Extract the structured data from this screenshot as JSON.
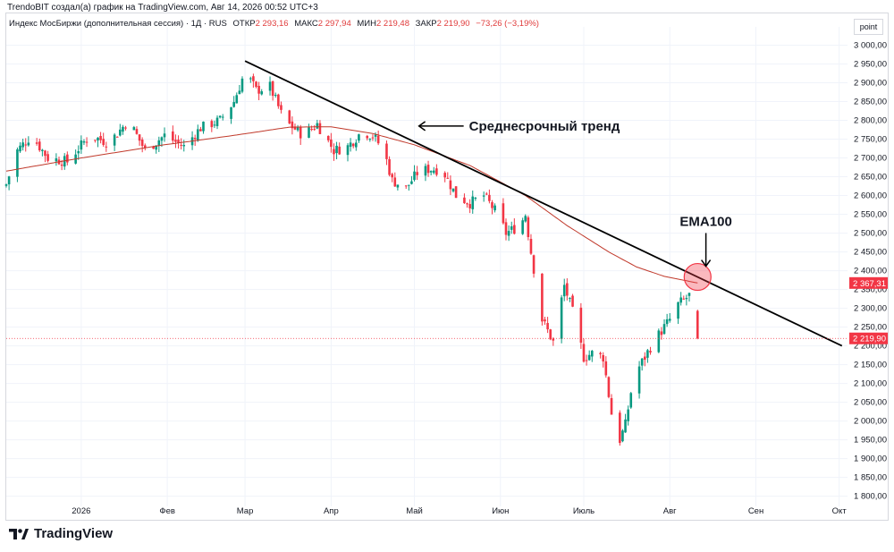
{
  "header": {
    "attribution": "TrendoBIT создал(а) график на TradingView.com, Авг 14, 2026 00:52 UTC+3",
    "instrument": "Индекс МосБиржи (дополнительная сессия) · 1Д · RUS",
    "open_label": "ОТКР",
    "open_value": "2 293,16",
    "high_label": "МАКС",
    "high_value": "2 297,94",
    "low_label": "МИН",
    "low_value": "2 219,48",
    "close_label": "ЗАКР",
    "close_value": "2 219,90",
    "change_value": "−73,26 (−3,19%)"
  },
  "scale_button": "point",
  "footer": {
    "brand": "TradingView"
  },
  "colors": {
    "up": "#089981",
    "down": "#f23645",
    "ema": "#c0392b",
    "trend": "#000000",
    "circle": "#f23645"
  },
  "chart_data": {
    "type": "candlestick",
    "title": "",
    "y_ticks": [
      "3 000,00",
      "2 950,00",
      "2 900,00",
      "2 850,00",
      "2 800,00",
      "2 750,00",
      "2 700,00",
      "2 650,00",
      "2 600,00",
      "2 550,00",
      "2 500,00",
      "2 450,00",
      "2 400,00",
      "2 350,00",
      "2 300,00",
      "2 250,00",
      "2 200,00",
      "2 150,00",
      "2 100,00",
      "2 050,00",
      "2 000,00",
      "1 950,00",
      "1 900,00",
      "1 850,00",
      "1 800,00"
    ],
    "y_tick_values": [
      3000,
      2950,
      2900,
      2850,
      2800,
      2750,
      2700,
      2650,
      2600,
      2550,
      2500,
      2450,
      2400,
      2350,
      2300,
      2250,
      2200,
      2150,
      2100,
      2050,
      2000,
      1950,
      1900,
      1850,
      1800
    ],
    "ylim": [
      1773,
      3025
    ],
    "x_ticks": [
      {
        "label": "2026",
        "day": 0
      },
      {
        "label": "Фев",
        "day": 31
      },
      {
        "label": "Мар",
        "day": 59
      },
      {
        "label": "Апр",
        "day": 90
      },
      {
        "label": "Май",
        "day": 120
      },
      {
        "label": "Июн",
        "day": 151
      },
      {
        "label": "Июль",
        "day": 181
      },
      {
        "label": "Авг",
        "day": 212
      },
      {
        "label": "Сен",
        "day": 243
      },
      {
        "label": "Окт",
        "day": 273
      }
    ],
    "xlim_days": [
      -27,
      276
    ],
    "anchors": [
      [
        -27,
        2630
      ],
      [
        -23,
        2720
      ],
      [
        -18,
        2760
      ],
      [
        -12,
        2700
      ],
      [
        -5,
        2690
      ],
      [
        3,
        2760
      ],
      [
        10,
        2740
      ],
      [
        17,
        2800
      ],
      [
        23,
        2720
      ],
      [
        30,
        2760
      ],
      [
        37,
        2730
      ],
      [
        43,
        2780
      ],
      [
        50,
        2800
      ],
      [
        55,
        2850
      ],
      [
        59,
        2930
      ],
      [
        63,
        2880
      ],
      [
        68,
        2890
      ],
      [
        73,
        2800
      ],
      [
        80,
        2760
      ],
      [
        85,
        2790
      ],
      [
        91,
        2720
      ],
      [
        96,
        2730
      ],
      [
        101,
        2770
      ],
      [
        105,
        2760
      ],
      [
        109,
        2720
      ],
      [
        112,
        2640
      ],
      [
        117,
        2620
      ],
      [
        121,
        2660
      ],
      [
        125,
        2670
      ],
      [
        130,
        2670
      ],
      [
        135,
        2600
      ],
      [
        140,
        2580
      ],
      [
        145,
        2600
      ],
      [
        150,
        2550
      ],
      [
        153,
        2500
      ],
      [
        158,
        2520
      ],
      [
        160,
        2550
      ],
      [
        162,
        2450
      ],
      [
        166,
        2270
      ],
      [
        170,
        2210
      ],
      [
        174,
        2360
      ],
      [
        177,
        2290
      ],
      [
        181,
        2170
      ],
      [
        184,
        2180
      ],
      [
        188,
        2170
      ],
      [
        191,
        2020
      ],
      [
        193,
        1930
      ],
      [
        196,
        1990
      ],
      [
        199,
        2120
      ],
      [
        203,
        2170
      ],
      [
        206,
        2210
      ],
      [
        209,
        2240
      ],
      [
        212,
        2270
      ],
      [
        215,
        2310
      ],
      [
        220,
        2340
      ],
      [
        222,
        2219.9
      ]
    ],
    "ema100": [
      [
        -27,
        2665
      ],
      [
        0,
        2700
      ],
      [
        30,
        2735
      ],
      [
        55,
        2760
      ],
      [
        75,
        2782
      ],
      [
        90,
        2783
      ],
      [
        105,
        2765
      ],
      [
        120,
        2735
      ],
      [
        140,
        2680
      ],
      [
        160,
        2600
      ],
      [
        175,
        2520
      ],
      [
        190,
        2450
      ],
      [
        200,
        2410
      ],
      [
        210,
        2385
      ],
      [
        222,
        2367.31
      ]
    ],
    "ema_label": "EMA100",
    "trend_label": "Среднесрочный тренд",
    "trend_line": [
      [
        59,
        2958
      ],
      [
        274,
        2200
      ]
    ],
    "highlight_price": "2 367,31",
    "last_price": "2 219,90"
  }
}
